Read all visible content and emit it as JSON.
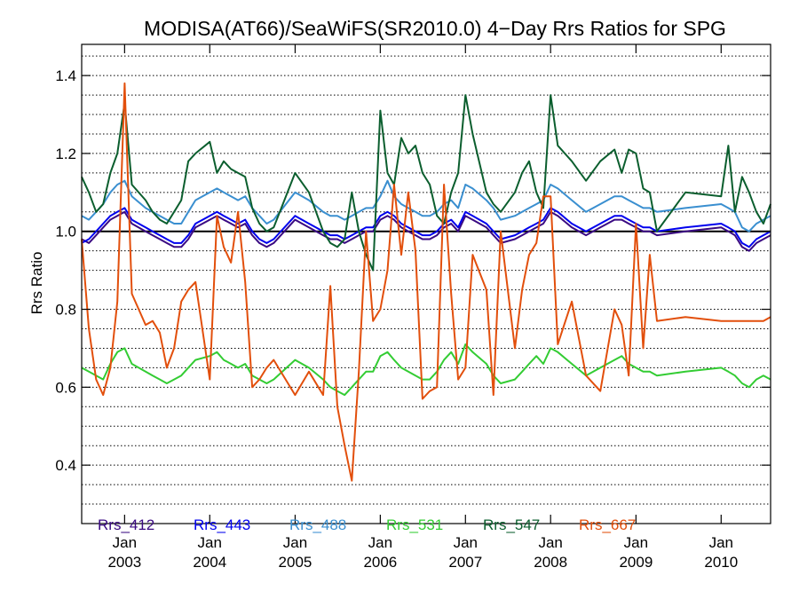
{
  "chart_data": {
    "type": "line",
    "title": "MODISA(AT66)/SeaWiFS(SR2010.0) 4−Day Rrs Ratios for SPG",
    "xlabel": "",
    "ylabel": "Rrs Ratio",
    "xlim": [
      "2002-07-01",
      "2010-08-01"
    ],
    "ylim": [
      0.25,
      1.48
    ],
    "y_ticks": [
      {
        "value": 0.4,
        "label": "0.4"
      },
      {
        "value": 0.6,
        "label": "0.6"
      },
      {
        "value": 0.8,
        "label": "0.8"
      },
      {
        "value": 1.0,
        "label": "1.0"
      },
      {
        "value": 1.2,
        "label": "1.2"
      },
      {
        "value": 1.4,
        "label": "1.4"
      }
    ],
    "x_ticks": [
      {
        "date": "2003-01-01",
        "month": "Jan",
        "year": "2003"
      },
      {
        "date": "2004-01-01",
        "month": "Jan",
        "year": "2004"
      },
      {
        "date": "2005-01-01",
        "month": "Jan",
        "year": "2005"
      },
      {
        "date": "2006-01-01",
        "month": "Jan",
        "year": "2006"
      },
      {
        "date": "2007-01-01",
        "month": "Jan",
        "year": "2007"
      },
      {
        "date": "2008-01-01",
        "month": "Jan",
        "year": "2008"
      },
      {
        "date": "2009-01-01",
        "month": "Jan",
        "year": "2009"
      },
      {
        "date": "2010-01-01",
        "month": "Jan",
        "year": "2010"
      }
    ],
    "reference_line": 1.0,
    "grid": "horizontal dotted",
    "legend_placement": "bottom inside",
    "x": [
      "2002-07-01",
      "2002-08-01",
      "2002-09-01",
      "2002-10-01",
      "2002-11-01",
      "2002-12-01",
      "2003-01-01",
      "2003-02-01",
      "2003-04-01",
      "2003-05-01",
      "2003-06-01",
      "2003-07-01",
      "2003-08-01",
      "2003-09-01",
      "2003-10-01",
      "2003-11-01",
      "2004-01-01",
      "2004-02-01",
      "2004-03-01",
      "2004-04-01",
      "2004-05-01",
      "2004-06-01",
      "2004-07-01",
      "2004-08-01",
      "2004-09-01",
      "2004-10-01",
      "2005-01-01",
      "2005-03-01",
      "2005-05-01",
      "2005-06-01",
      "2005-07-01",
      "2005-08-01",
      "2005-09-01",
      "2005-10-01",
      "2005-11-01",
      "2005-12-01",
      "2006-01-01",
      "2006-02-01",
      "2006-03-01",
      "2006-04-01",
      "2006-05-01",
      "2006-06-01",
      "2006-07-01",
      "2006-08-01",
      "2006-09-01",
      "2006-10-01",
      "2006-11-01",
      "2006-12-01",
      "2007-01-01",
      "2007-02-01",
      "2007-04-01",
      "2007-05-01",
      "2007-06-01",
      "2007-08-01",
      "2007-09-01",
      "2007-10-01",
      "2007-11-01",
      "2007-12-01",
      "2008-01-01",
      "2008-02-01",
      "2008-04-01",
      "2008-06-01",
      "2008-08-01",
      "2008-10-01",
      "2008-11-01",
      "2008-12-01",
      "2009-01-01",
      "2009-02-01",
      "2009-03-01",
      "2009-04-01",
      "2009-08-01",
      "2010-01-01",
      "2010-02-01",
      "2010-03-01",
      "2010-04-01",
      "2010-05-01",
      "2010-06-01",
      "2010-07-01",
      "2010-08-01"
    ],
    "series": [
      {
        "name": "Rrs_412",
        "color": "#3a0a82",
        "values": [
          0.98,
          0.97,
          0.99,
          1.01,
          1.03,
          1.04,
          1.05,
          1.02,
          1.0,
          0.99,
          0.98,
          0.97,
          0.96,
          0.96,
          0.98,
          1.01,
          1.03,
          1.04,
          1.03,
          1.02,
          1.01,
          1.02,
          0.99,
          0.97,
          0.96,
          0.97,
          1.03,
          1.01,
          0.99,
          0.98,
          0.98,
          0.97,
          0.98,
          0.99,
          1.0,
          1.0,
          1.03,
          1.04,
          1.03,
          1.01,
          1.0,
          0.99,
          0.98,
          0.98,
          0.99,
          1.01,
          1.02,
          1.0,
          1.04,
          1.03,
          1.01,
          0.99,
          0.97,
          0.98,
          0.99,
          1.0,
          1.01,
          1.02,
          1.05,
          1.04,
          1.01,
          0.99,
          1.01,
          1.03,
          1.03,
          1.02,
          1.01,
          1.0,
          1.0,
          0.99,
          1.0,
          1.01,
          1.0,
          0.99,
          0.96,
          0.95,
          0.97,
          0.98,
          0.99
        ]
      },
      {
        "name": "Rrs_443",
        "color": "#0000ee",
        "values": [
          0.97,
          0.98,
          1.0,
          1.02,
          1.04,
          1.05,
          1.06,
          1.03,
          1.01,
          1.0,
          0.99,
          0.98,
          0.97,
          0.97,
          0.99,
          1.02,
          1.04,
          1.05,
          1.04,
          1.03,
          1.02,
          1.03,
          1.0,
          0.98,
          0.97,
          0.98,
          1.04,
          1.02,
          1.0,
          0.99,
          0.99,
          0.98,
          0.99,
          1.0,
          1.01,
          1.01,
          1.04,
          1.05,
          1.04,
          1.02,
          1.01,
          1.0,
          0.99,
          0.99,
          1.0,
          1.02,
          1.03,
          1.01,
          1.05,
          1.04,
          1.02,
          1.0,
          0.98,
          0.99,
          1.0,
          1.01,
          1.02,
          1.03,
          1.06,
          1.05,
          1.02,
          1.0,
          1.02,
          1.04,
          1.04,
          1.03,
          1.02,
          1.01,
          1.01,
          1.0,
          1.01,
          1.02,
          1.01,
          1.0,
          0.97,
          0.96,
          0.98,
          0.99,
          1.0
        ]
      },
      {
        "name": "Rrs_488",
        "color": "#3a8fd0",
        "values": [
          1.04,
          1.03,
          1.05,
          1.07,
          1.1,
          1.12,
          1.13,
          1.09,
          1.06,
          1.05,
          1.04,
          1.03,
          1.02,
          1.02,
          1.05,
          1.08,
          1.1,
          1.11,
          1.1,
          1.09,
          1.08,
          1.09,
          1.06,
          1.04,
          1.02,
          1.03,
          1.1,
          1.08,
          1.05,
          1.04,
          1.04,
          1.03,
          1.04,
          1.05,
          1.06,
          1.06,
          1.09,
          1.13,
          1.09,
          1.07,
          1.06,
          1.05,
          1.04,
          1.04,
          1.05,
          1.07,
          1.08,
          1.06,
          1.12,
          1.11,
          1.08,
          1.06,
          1.03,
          1.04,
          1.05,
          1.06,
          1.07,
          1.08,
          1.12,
          1.11,
          1.08,
          1.05,
          1.07,
          1.09,
          1.09,
          1.08,
          1.07,
          1.06,
          1.06,
          1.05,
          1.06,
          1.07,
          1.06,
          1.05,
          1.01,
          1.0,
          1.02,
          1.03,
          1.04
        ]
      },
      {
        "name": "Rrs_531",
        "color": "#33cc33",
        "values": [
          0.65,
          0.64,
          0.63,
          0.62,
          0.66,
          0.69,
          0.7,
          0.66,
          0.64,
          0.63,
          0.62,
          0.61,
          0.62,
          0.63,
          0.65,
          0.67,
          0.68,
          0.69,
          0.67,
          0.66,
          0.65,
          0.66,
          0.63,
          0.62,
          0.61,
          0.62,
          0.67,
          0.65,
          0.62,
          0.6,
          0.59,
          0.58,
          0.6,
          0.62,
          0.64,
          0.64,
          0.68,
          0.69,
          0.67,
          0.65,
          0.64,
          0.63,
          0.62,
          0.62,
          0.64,
          0.67,
          0.69,
          0.66,
          0.71,
          0.69,
          0.66,
          0.63,
          0.61,
          0.62,
          0.64,
          0.66,
          0.68,
          0.66,
          0.7,
          0.69,
          0.66,
          0.63,
          0.65,
          0.67,
          0.68,
          0.66,
          0.65,
          0.64,
          0.64,
          0.63,
          0.64,
          0.65,
          0.64,
          0.63,
          0.61,
          0.6,
          0.62,
          0.63,
          0.62
        ]
      },
      {
        "name": "Rrs_547",
        "color": "#0b5e2e",
        "values": [
          1.14,
          1.1,
          1.05,
          1.07,
          1.15,
          1.2,
          1.33,
          1.12,
          1.08,
          1.05,
          1.03,
          1.02,
          1.05,
          1.08,
          1.18,
          1.2,
          1.23,
          1.15,
          1.18,
          1.16,
          1.15,
          1.14,
          1.06,
          1.02,
          1.0,
          1.01,
          1.15,
          1.1,
          1.0,
          0.97,
          0.96,
          0.98,
          1.1,
          1.0,
          0.94,
          0.9,
          1.31,
          1.15,
          1.12,
          1.24,
          1.2,
          1.22,
          1.15,
          1.12,
          1.04,
          1.02,
          1.1,
          1.15,
          1.35,
          1.25,
          1.1,
          1.07,
          1.05,
          1.1,
          1.15,
          1.18,
          1.1,
          1.06,
          1.35,
          1.22,
          1.18,
          1.13,
          1.18,
          1.21,
          1.15,
          1.21,
          1.2,
          1.11,
          1.1,
          1.0,
          1.1,
          1.09,
          1.22,
          1.05,
          1.14,
          1.1,
          1.05,
          1.02,
          1.07
        ]
      },
      {
        "name": "Rrs_667",
        "color": "#e24f0c",
        "values": [
          0.98,
          0.75,
          0.62,
          0.58,
          0.65,
          0.82,
          1.38,
          0.84,
          0.76,
          0.77,
          0.74,
          0.65,
          0.7,
          0.82,
          0.85,
          0.87,
          0.62,
          1.04,
          0.96,
          0.92,
          1.05,
          0.87,
          0.6,
          0.62,
          0.65,
          0.67,
          0.58,
          0.64,
          0.58,
          0.86,
          0.55,
          0.45,
          0.36,
          0.64,
          1.0,
          0.77,
          0.8,
          0.9,
          1.12,
          0.94,
          1.1,
          0.95,
          0.57,
          0.59,
          0.6,
          1.12,
          0.84,
          0.62,
          0.65,
          0.94,
          0.85,
          0.58,
          1.0,
          0.7,
          0.85,
          0.94,
          0.97,
          1.09,
          1.09,
          0.71,
          0.82,
          0.63,
          0.59,
          0.8,
          0.76,
          0.63,
          1.02,
          0.7,
          0.94,
          0.77,
          0.78,
          0.77,
          0.77,
          0.77,
          0.77,
          0.77,
          0.77,
          0.77,
          0.78
        ]
      }
    ]
  }
}
